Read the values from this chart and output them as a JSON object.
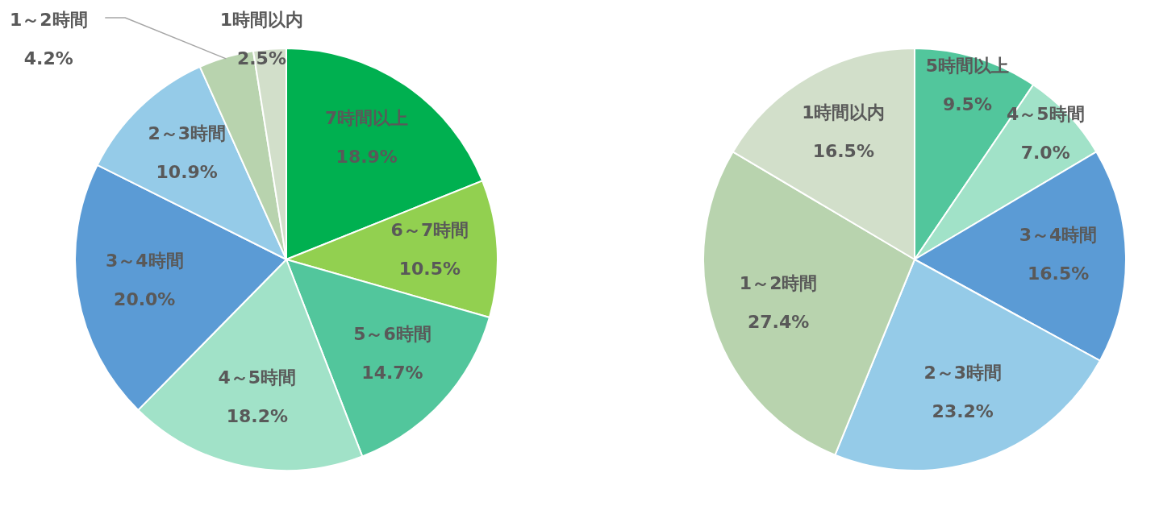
{
  "chart_data": [
    {
      "type": "pie",
      "categories": [
        "7時間以上",
        "6～7時間",
        "5～6時間",
        "4～5時間",
        "3～4時間",
        "2～3時間",
        "1～2時間",
        "1時間以内"
      ],
      "values": [
        18.9,
        10.5,
        14.7,
        18.2,
        20.0,
        10.9,
        4.2,
        2.5
      ],
      "value_labels": [
        "18.9%",
        "10.5%",
        "14.7%",
        "18.2%",
        "20.0%",
        "10.9%",
        "4.2%",
        "2.5%"
      ],
      "colors": [
        "#00b050",
        "#92d050",
        "#52c69c",
        "#a1e2c8",
        "#5b9bd5",
        "#95cbe8",
        "#b8d3ae",
        "#d2dfca"
      ]
    },
    {
      "type": "pie",
      "categories": [
        "5時間以上",
        "4～5時間",
        "3～4時間",
        "2～3時間",
        "1～2時間",
        "1時間以内"
      ],
      "values": [
        9.5,
        7.0,
        16.5,
        23.2,
        27.4,
        16.5
      ],
      "value_labels": [
        "9.5%",
        "7.0%",
        "16.5%",
        "23.2%",
        "27.4%",
        "16.5%"
      ],
      "colors": [
        "#52c69c",
        "#a1e2c8",
        "#5b9bd5",
        "#95cbe8",
        "#b8d3ae",
        "#d2dfca"
      ]
    }
  ]
}
